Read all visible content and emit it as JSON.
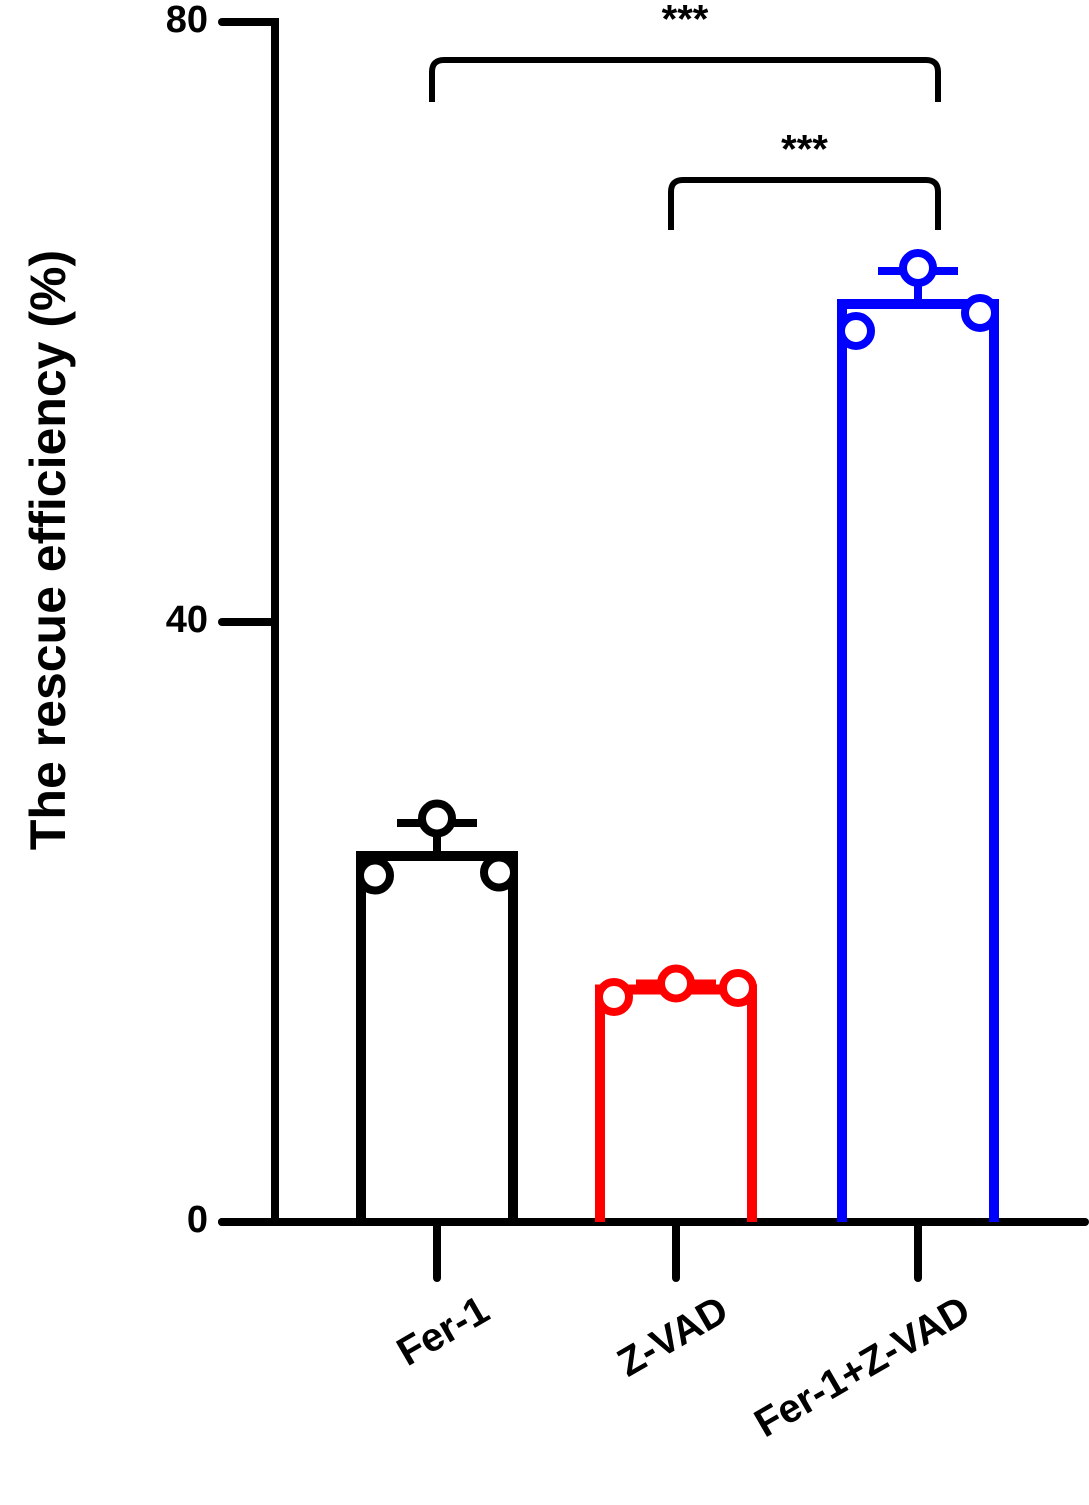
{
  "chart_data": {
    "type": "bar",
    "ylabel": "The rescue efficiency (%)",
    "categories": [
      "Fer-1",
      "Z-VAD",
      "Fer-1+Z-VAD"
    ],
    "values": [
      24.4,
      15.5,
      61.2
    ],
    "errors": [
      2.2,
      0.4,
      2.2
    ],
    "points": [
      [
        23.1,
        26.9,
        23.3
      ],
      [
        15.0,
        15.9,
        15.6
      ],
      [
        59.4,
        63.6,
        60.6
      ]
    ],
    "colors": [
      "#000000",
      "#ff0000",
      "#0000ff"
    ],
    "ylim": [
      0,
      80
    ],
    "yticks": [
      0,
      40,
      80
    ],
    "annotations": [
      {
        "text": "***",
        "from": 0,
        "to": 2
      },
      {
        "text": "***",
        "from": 1,
        "to": 2
      }
    ]
  }
}
